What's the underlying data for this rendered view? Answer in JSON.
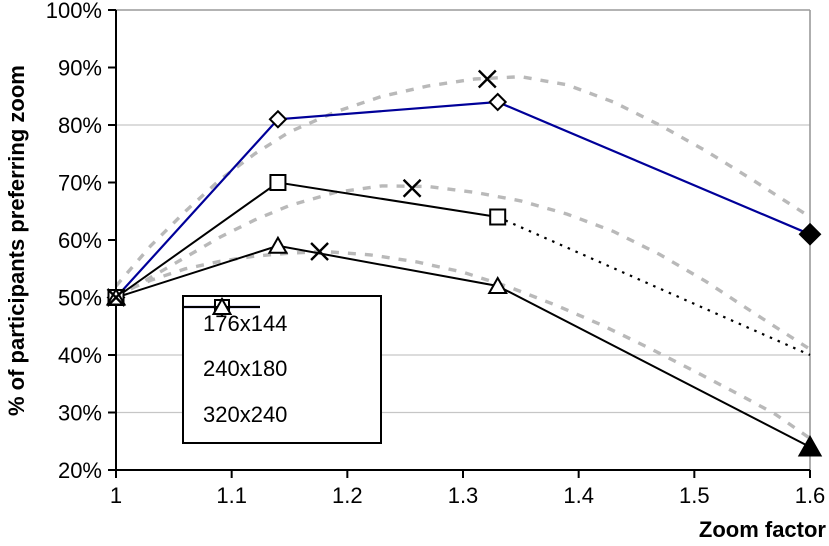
{
  "chart_data": {
    "type": "line",
    "title": "",
    "xlabel": "Zoom factor",
    "ylabel": "% of participants preferring zoom",
    "xlim": [
      1,
      1.6
    ],
    "ylim": [
      20,
      100
    ],
    "x_tick_labels": [
      "1",
      "1.1",
      "1.2",
      "1.3",
      "1.4",
      "1.5",
      "1.6"
    ],
    "x_tick_values": [
      1,
      1.1,
      1.2,
      1.3,
      1.4,
      1.5,
      1.6
    ],
    "y_tick_labels": [
      "100%",
      "90%",
      "80%",
      "70%",
      "60%",
      "50%",
      "40%",
      "30%",
      "20%"
    ],
    "y_tick_values": [
      100,
      90,
      80,
      70,
      60,
      50,
      40,
      30,
      20
    ],
    "gridline_values": [
      80,
      40,
      30
    ],
    "grid": "partial-horizontal",
    "legend_position": "inside lower-left",
    "colors": {
      "series_blue": "#000099",
      "series_black": "#000000",
      "fitted_gray": "#b9b9b9",
      "gridline": "#c6c6c6",
      "frame": "#9a9a9a",
      "axis": "#000000"
    },
    "series": [
      {
        "name": "176x144",
        "color": "#000099",
        "marker": "diamond",
        "points": [
          [
            1.0,
            50
          ],
          [
            1.14,
            81
          ],
          [
            1.33,
            84
          ],
          [
            1.6,
            61
          ]
        ],
        "last_marker_filled": true
      },
      {
        "name": "240x180",
        "color": "#000000",
        "marker": "square",
        "points": [
          [
            1.0,
            50
          ],
          [
            1.14,
            70
          ],
          [
            1.33,
            64
          ]
        ],
        "last_marker_filled": false
      },
      {
        "name": "320x240",
        "color": "#000000",
        "marker": "triangle",
        "points": [
          [
            1.0,
            50
          ],
          [
            1.14,
            59
          ],
          [
            1.33,
            52
          ],
          [
            1.6,
            24
          ]
        ],
        "last_marker_filled": true
      }
    ],
    "extra_markers": {
      "name": "peak-x-markers",
      "marker": "x",
      "color": "#000000",
      "points": [
        [
          1.0,
          50
        ],
        [
          1.176,
          58
        ],
        [
          1.256,
          69
        ],
        [
          1.321,
          88
        ]
      ]
    },
    "dotted_segment": {
      "name": "240x180-dotted-extension",
      "color": "#000000",
      "from": [
        1.33,
        64
      ],
      "to": [
        1.6,
        40
      ]
    },
    "fitted_curves": [
      {
        "for": "176x144",
        "points": [
          [
            1.0,
            52
          ],
          [
            1.03,
            59
          ],
          [
            1.06,
            65
          ],
          [
            1.09,
            70.5
          ],
          [
            1.12,
            75
          ],
          [
            1.15,
            78.8
          ],
          [
            1.19,
            82.3
          ],
          [
            1.23,
            85
          ],
          [
            1.27,
            86.8
          ],
          [
            1.31,
            88
          ],
          [
            1.35,
            88.4
          ],
          [
            1.39,
            87
          ],
          [
            1.43,
            84
          ],
          [
            1.47,
            80
          ],
          [
            1.51,
            75.5
          ],
          [
            1.55,
            70.5
          ],
          [
            1.6,
            64
          ]
        ]
      },
      {
        "for": "240x180",
        "points": [
          [
            1.0,
            50
          ],
          [
            1.03,
            53.5
          ],
          [
            1.06,
            57
          ],
          [
            1.09,
            60.5
          ],
          [
            1.12,
            63.5
          ],
          [
            1.15,
            66
          ],
          [
            1.19,
            68.3
          ],
          [
            1.23,
            69.4
          ],
          [
            1.27,
            69.3
          ],
          [
            1.31,
            68.3
          ],
          [
            1.35,
            66.8
          ],
          [
            1.39,
            64.5
          ],
          [
            1.43,
            61.5
          ],
          [
            1.47,
            57.5
          ],
          [
            1.51,
            52.8
          ],
          [
            1.55,
            47.5
          ],
          [
            1.6,
            41
          ]
        ]
      },
      {
        "for": "320x240",
        "points": [
          [
            1.0,
            50.5
          ],
          [
            1.03,
            53
          ],
          [
            1.06,
            55
          ],
          [
            1.09,
            56.3
          ],
          [
            1.12,
            57.2
          ],
          [
            1.15,
            57.7
          ],
          [
            1.18,
            58
          ],
          [
            1.22,
            57.4
          ],
          [
            1.26,
            56.2
          ],
          [
            1.3,
            54.4
          ],
          [
            1.34,
            51.8
          ],
          [
            1.38,
            48.7
          ],
          [
            1.42,
            45.2
          ],
          [
            1.46,
            41.3
          ],
          [
            1.5,
            37.2
          ],
          [
            1.54,
            33
          ],
          [
            1.57,
            29.7
          ],
          [
            1.6,
            25.5
          ]
        ]
      }
    ]
  }
}
